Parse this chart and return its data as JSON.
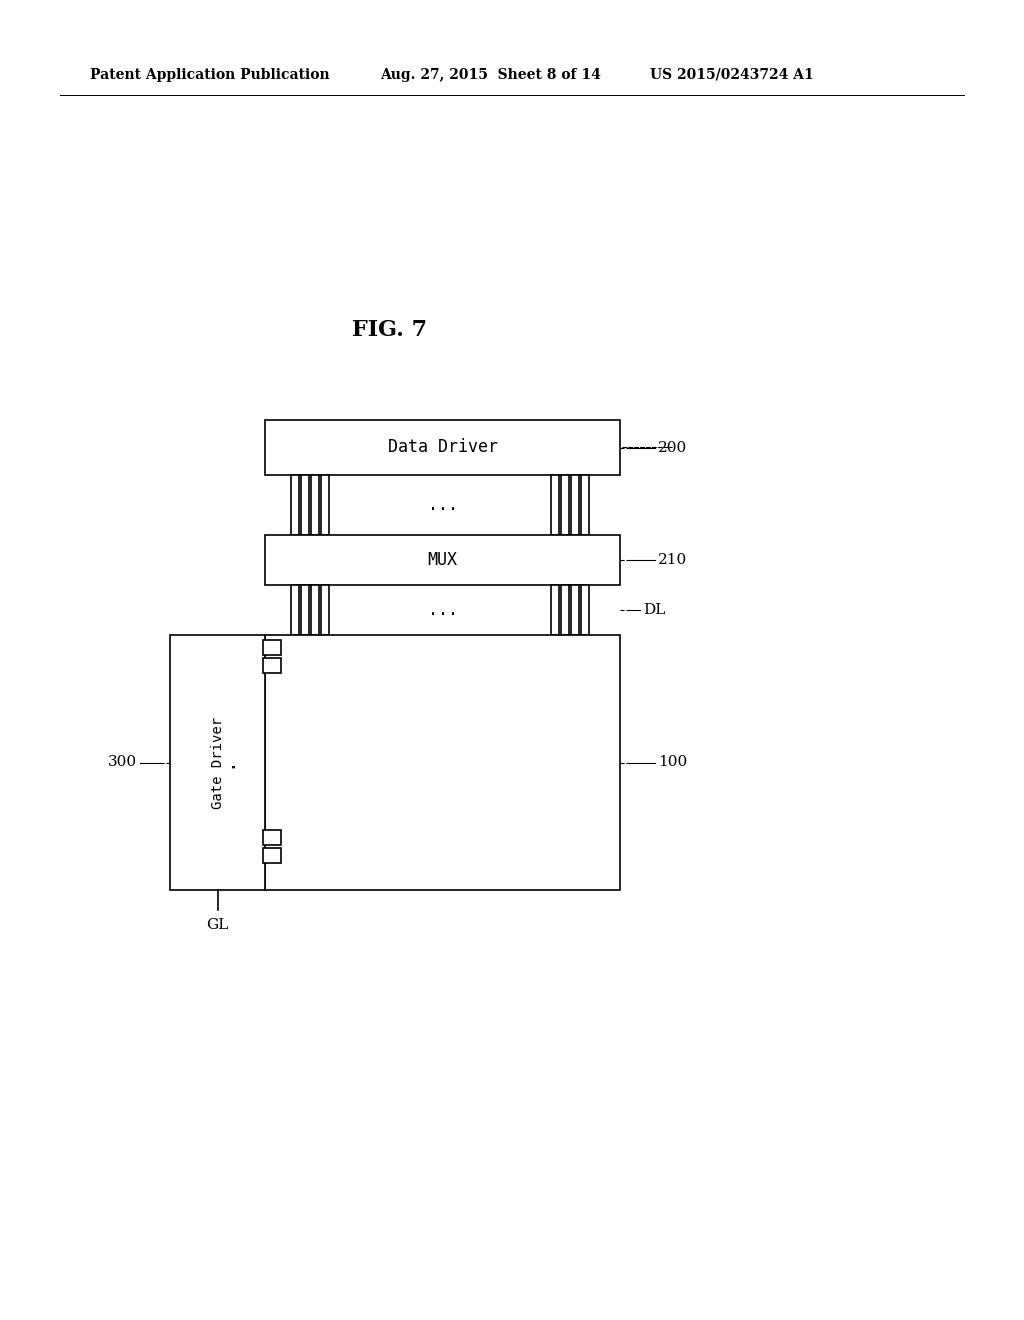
{
  "bg_color": "#ffffff",
  "header_left": "Patent Application Publication",
  "header_mid": "Aug. 27, 2015  Sheet 8 of 14",
  "header_right": "US 2015/0243724 A1",
  "fig_label": "FIG. 7",
  "data_driver_label": "Data Driver",
  "data_driver_ref": "200",
  "mux_label": "MUX",
  "mux_ref": "210",
  "dl_label": "DL",
  "panel_ref": "100",
  "gate_driver_label": "Gate Driver",
  "gate_driver_ref": "300",
  "gl_label": "GL",
  "dots": "...",
  "lw": 1.2
}
